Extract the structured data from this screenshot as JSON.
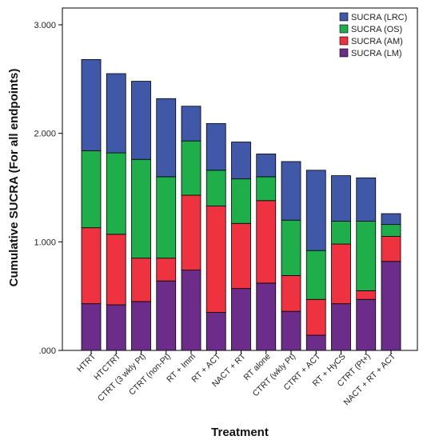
{
  "chart_data": {
    "type": "bar",
    "stacked": true,
    "xlabel": "Treatment",
    "ylabel": "Cumulative SUCRA (For all endpoints)",
    "ylim": [
      0,
      3.0
    ],
    "yticks": [
      0,
      1.0,
      2.0,
      3.0
    ],
    "ytick_labels": [
      ".000",
      "1.000",
      "2.000",
      "3.000"
    ],
    "categories": [
      "HTRT",
      "HTCTRT",
      "CTRT (3 wkly Pt)",
      "CTRT (non-Pt)",
      "RT + Imm",
      "RT + ACT",
      "NACT + RT",
      "RT alone",
      "CTRT (wkly Pt)",
      "CTRT + ACT",
      "RT + HyCS",
      "CTRT (Pt+)",
      "NACT + RT + ACT"
    ],
    "grid": false,
    "legend_position": "top-right",
    "series": [
      {
        "name": "SUCRA (LM)",
        "color": "#6b2c8a",
        "values": [
          0.43,
          0.42,
          0.45,
          0.64,
          0.74,
          0.35,
          0.57,
          0.62,
          0.36,
          0.14,
          0.43,
          0.47,
          0.82
        ]
      },
      {
        "name": "SUCRA (AM)",
        "color": "#ee3240",
        "values": [
          0.7,
          0.65,
          0.4,
          0.21,
          0.69,
          0.98,
          0.6,
          0.76,
          0.33,
          0.33,
          0.55,
          0.08,
          0.23
        ]
      },
      {
        "name": "SUCRA (OS)",
        "color": "#1eae4a",
        "values": [
          0.71,
          0.75,
          0.91,
          0.75,
          0.5,
          0.33,
          0.41,
          0.22,
          0.51,
          0.45,
          0.21,
          0.64,
          0.11
        ]
      },
      {
        "name": "SUCRA (LRC)",
        "color": "#3f58a8",
        "values": [
          0.84,
          0.73,
          0.72,
          0.72,
          0.32,
          0.43,
          0.34,
          0.21,
          0.54,
          0.74,
          0.42,
          0.4,
          0.1
        ]
      }
    ],
    "legend_order": [
      "SUCRA (LRC)",
      "SUCRA (OS)",
      "SUCRA (AM)",
      "SUCRA (LM)"
    ]
  }
}
